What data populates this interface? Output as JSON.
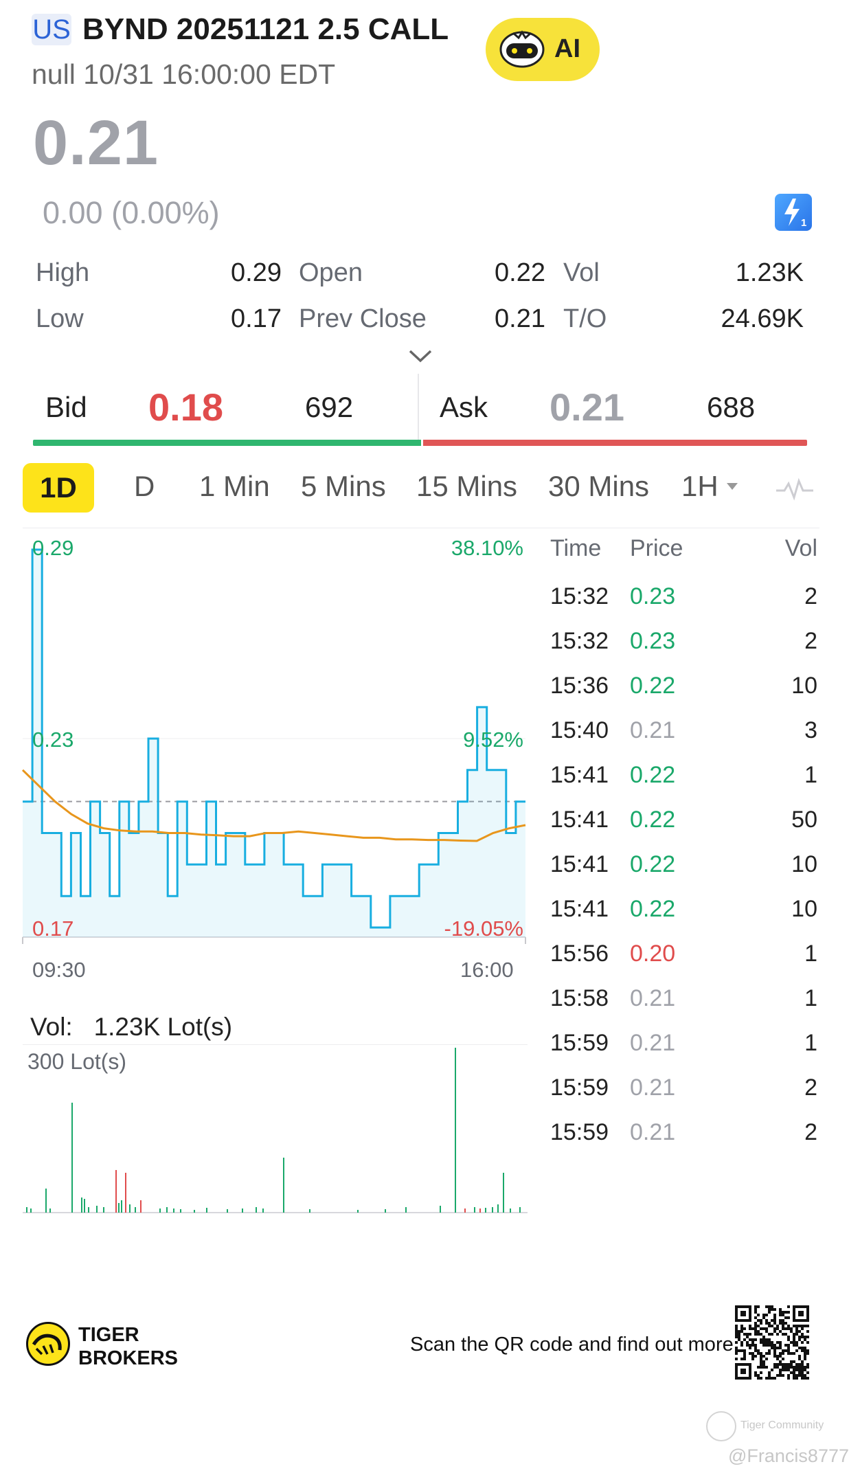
{
  "header": {
    "market": "US",
    "title": "BYND 20251121 2.5 CALL",
    "subtitle": "null 10/31 16:00:00 EDT",
    "ai_label": "AI"
  },
  "quote": {
    "price": "0.21",
    "change": "0.00 (0.00%)",
    "stats": [
      {
        "label": "High",
        "value": "0.29"
      },
      {
        "label": "Open",
        "value": "0.22"
      },
      {
        "label": "Vol",
        "value": "1.23K"
      },
      {
        "label": "Low",
        "value": "0.17"
      },
      {
        "label": "Prev Close",
        "value": "0.21"
      },
      {
        "label": "T/O",
        "value": "24.69K"
      }
    ]
  },
  "orderbook": {
    "bid_label": "Bid",
    "bid_price": "0.18",
    "bid_size": "692",
    "ask_label": "Ask",
    "ask_price": "0.21",
    "ask_size": "688"
  },
  "tabs": [
    "1D",
    "D",
    "1 Min",
    "5 Mins",
    "15 Mins",
    "30 Mins",
    "1H"
  ],
  "active_tab": "1D",
  "chart": {
    "y_top_left": "0.29",
    "y_top_right": "38.10%",
    "y_mid_left": "0.23",
    "y_mid_right": "9.52%",
    "y_bot_left": "0.17",
    "y_bot_right": "-19.05%",
    "x_start": "09:30",
    "x_end": "16:00"
  },
  "chart_data": {
    "type": "line",
    "x_range": [
      "09:30",
      "16:00"
    ],
    "ylim": [
      0.17,
      0.29
    ],
    "prev_close": 0.21,
    "series": [
      {
        "values": [
          0.21,
          0.29,
          0.2,
          0.2,
          0.18,
          0.2,
          0.18,
          0.21,
          0.2,
          0.18,
          0.21,
          0.2,
          0.21,
          0.23,
          0.2,
          0.18,
          0.21,
          0.19,
          0.19,
          0.21,
          0.19,
          0.2,
          0.2,
          0.19,
          0.19,
          0.2,
          0.2,
          0.19,
          0.19,
          0.18,
          0.18,
          0.19,
          0.19,
          0.19,
          0.18,
          0.18,
          0.17,
          0.17,
          0.18,
          0.18,
          0.18,
          0.19,
          0.19,
          0.2,
          0.2,
          0.21,
          0.22,
          0.24,
          0.22,
          0.22,
          0.2,
          0.21
        ]
      },
      {
        "values": [
          0.22,
          0.215,
          0.21,
          0.206,
          0.203,
          0.2015,
          0.2008,
          0.2005,
          0.2005,
          0.2,
          0.2,
          0.1995,
          0.1993,
          0.199,
          0.199,
          0.2,
          0.2,
          0.2005,
          0.2,
          0.1995,
          0.199,
          0.1985,
          0.1985,
          0.198,
          0.198,
          0.1978,
          0.1978,
          0.1976,
          0.1975,
          0.2,
          0.2015,
          0.2025
        ]
      }
    ]
  },
  "trades": {
    "headers": [
      "Time",
      "Price",
      "Vol"
    ],
    "rows": [
      {
        "time": "15:32",
        "price": "0.23",
        "vol": "2",
        "dir": "up"
      },
      {
        "time": "15:32",
        "price": "0.23",
        "vol": "2",
        "dir": "up"
      },
      {
        "time": "15:36",
        "price": "0.22",
        "vol": "10",
        "dir": "up"
      },
      {
        "time": "15:40",
        "price": "0.21",
        "vol": "3",
        "dir": "flat"
      },
      {
        "time": "15:41",
        "price": "0.22",
        "vol": "1",
        "dir": "up"
      },
      {
        "time": "15:41",
        "price": "0.22",
        "vol": "50",
        "dir": "up"
      },
      {
        "time": "15:41",
        "price": "0.22",
        "vol": "10",
        "dir": "up"
      },
      {
        "time": "15:41",
        "price": "0.22",
        "vol": "10",
        "dir": "up"
      },
      {
        "time": "15:56",
        "price": "0.20",
        "vol": "1",
        "dir": "down"
      },
      {
        "time": "15:58",
        "price": "0.21",
        "vol": "1",
        "dir": "flat"
      },
      {
        "time": "15:59",
        "price": "0.21",
        "vol": "1",
        "dir": "flat"
      },
      {
        "time": "15:59",
        "price": "0.21",
        "vol": "2",
        "dir": "flat"
      },
      {
        "time": "15:59",
        "price": "0.21",
        "vol": "2",
        "dir": "flat"
      }
    ]
  },
  "volume": {
    "label": "Vol:",
    "value": "1.23K Lot(s)",
    "scale": "300 Lot(s)"
  },
  "footer": {
    "brand_line1": "TIGER",
    "brand_line2": "BROKERS",
    "scan_text": "Scan the QR code and find out more",
    "watermark_brand": "Tiger Community",
    "watermark_user": "@Francis8777"
  },
  "colors": {
    "up": "#1aa86a",
    "down": "#e04c4c",
    "flat": "#a0a2a9",
    "price_line": "#18aee0",
    "avg_line": "#e8961c",
    "accent": "#fde31a"
  }
}
